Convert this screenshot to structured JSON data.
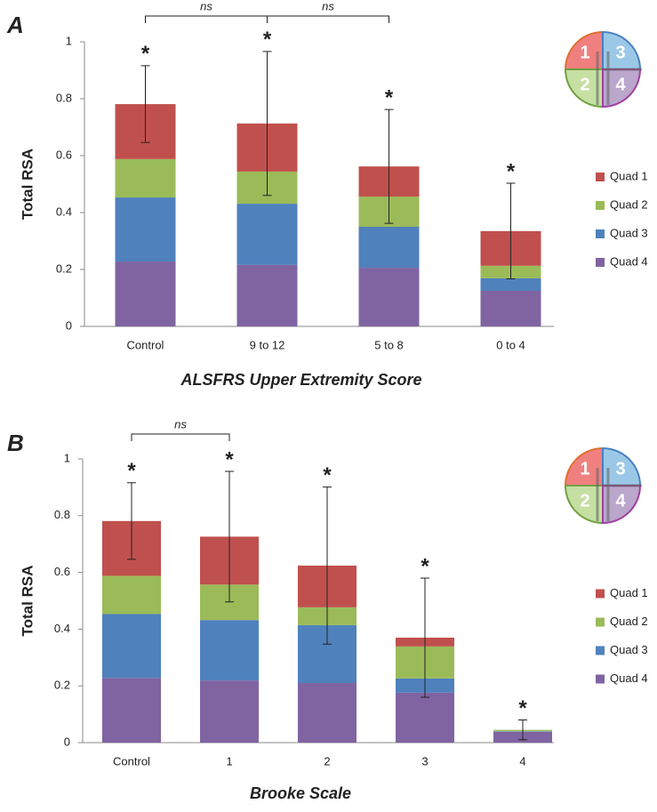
{
  "chart_data": [
    {
      "type": "stacked_bar",
      "panel": "A",
      "x_label": "ALSFRS Upper Extremity Score",
      "y_label": "Total RSA",
      "categories": [
        "Control",
        "9 to 12",
        "5 to 8",
        "0 to 4"
      ],
      "series": [
        {
          "name": "Quad 1",
          "color": "#c0504d",
          "values": [
            0.193,
            0.169,
            0.106,
            0.122
          ]
        },
        {
          "name": "Quad 2",
          "color": "#9bbb59",
          "values": [
            0.135,
            0.113,
            0.106,
            0.044
          ]
        },
        {
          "name": "Quad 3",
          "color": "#4f81bd",
          "values": [
            0.225,
            0.215,
            0.144,
            0.044
          ]
        },
        {
          "name": "Quad 4",
          "color": "#8064a2",
          "values": [
            0.228,
            0.216,
            0.206,
            0.125
          ]
        }
      ],
      "errors": [
        0.135,
        0.253,
        0.2,
        0.168
      ],
      "stars": [
        "*",
        "*",
        "*",
        "*"
      ],
      "brackets": [
        {
          "label": "ns",
          "between": [
            "Control",
            "9 to 12"
          ]
        },
        {
          "label": "ns",
          "between": [
            "9 to 12",
            "5 to 8"
          ]
        }
      ],
      "icon_labels": [
        "1",
        "2",
        "3",
        "4"
      ],
      "ylim": [
        0,
        1
      ],
      "yticks": [
        0,
        0.2,
        0.4,
        0.6,
        0.8,
        1
      ],
      "legend": "right"
    },
    {
      "type": "stacked_bar",
      "panel": "B",
      "x_label": "Brooke Scale",
      "y_label": "Total RSA",
      "categories": [
        "Control",
        "1",
        "2",
        "3",
        "4"
      ],
      "series": [
        {
          "name": "Quad 1",
          "color": "#c0504d",
          "values": [
            0.193,
            0.169,
            0.147,
            0.031,
            0
          ]
        },
        {
          "name": "Quad 2",
          "color": "#9bbb59",
          "values": [
            0.135,
            0.125,
            0.063,
            0.113,
            0.005
          ]
        },
        {
          "name": "Quad 3",
          "color": "#4f81bd",
          "values": [
            0.225,
            0.213,
            0.204,
            0.05,
            0.002
          ]
        },
        {
          "name": "Quad 4",
          "color": "#8064a2",
          "values": [
            0.228,
            0.219,
            0.21,
            0.176,
            0.038
          ]
        }
      ],
      "errors": [
        0.135,
        0.23,
        0.277,
        0.21,
        0.035
      ],
      "stars": [
        "*",
        "*",
        "*",
        "*",
        "*"
      ],
      "brackets": [
        {
          "label": "ns",
          "between": [
            "Control",
            "1"
          ]
        }
      ],
      "icon_labels": [
        "1",
        "2",
        "3",
        "4"
      ],
      "ylim": [
        0,
        1
      ],
      "yticks": [
        0,
        0.2,
        0.4,
        0.6,
        0.8,
        1
      ],
      "legend": "right"
    }
  ]
}
